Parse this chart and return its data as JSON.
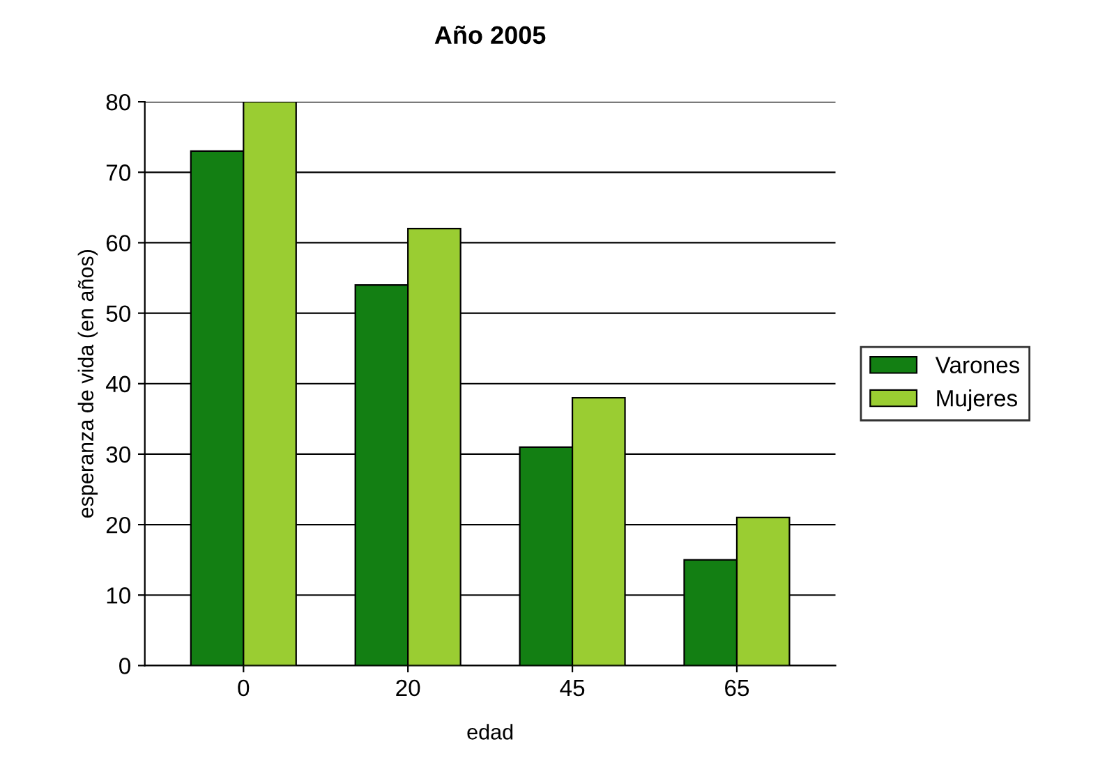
{
  "chart_data": {
    "type": "bar",
    "title": "Año 2005",
    "xlabel": "edad",
    "ylabel": "esperanza de vida (en años)",
    "categories": [
      "0",
      "20",
      "45",
      "65"
    ],
    "series": [
      {
        "name": "Varones",
        "color": "#137f13",
        "values": [
          73,
          54,
          31,
          15
        ]
      },
      {
        "name": "Mujeres",
        "color": "#9acd32",
        "values": [
          80,
          62,
          38,
          21
        ]
      }
    ],
    "ylim": [
      0,
      80
    ],
    "yticks": [
      0,
      10,
      20,
      30,
      40,
      50,
      60,
      70,
      80
    ],
    "grid": "y",
    "legend": "right"
  }
}
